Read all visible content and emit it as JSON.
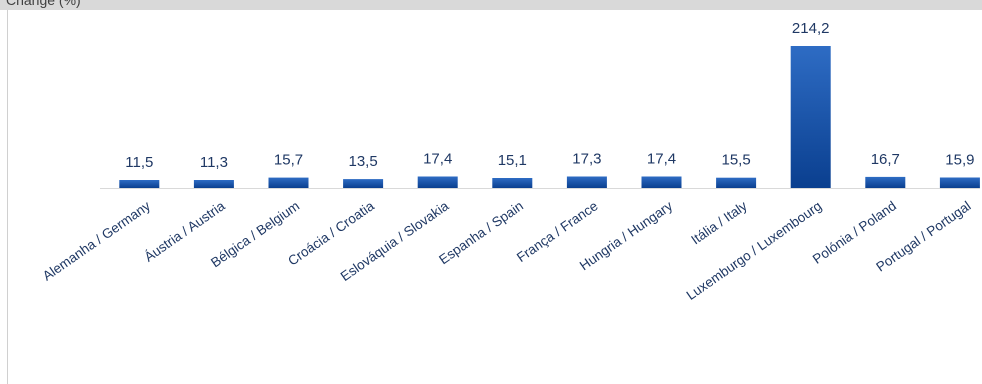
{
  "header": {
    "cropped_title": "Change (%)"
  },
  "colors": {
    "bar_top": "#2e6cc4",
    "bar_bottom": "#0a3f8f",
    "label": "#1f3864",
    "baseline": "#d9d9d9",
    "band": "#d9d9d9"
  },
  "chart_data": {
    "type": "bar",
    "title": "",
    "xlabel": "",
    "ylabel": "",
    "grid": false,
    "legend": "none",
    "categories": [
      "Alemanha / Germany",
      "Áustria / Austria",
      "Bélgica / Belgium",
      "Croácia / Croatia",
      "Eslováquia / Slovakia",
      "Espanha / Spain",
      "França / France",
      "Hungria / Hungary",
      "Itália / Italy",
      "Luxemburgo / Luxembourg",
      "Polónia / Poland",
      "Portugal / Portugal"
    ],
    "values": [
      11.5,
      11.3,
      15.7,
      13.5,
      17.4,
      15.1,
      17.3,
      17.4,
      15.5,
      214.2,
      16.7,
      15.9
    ],
    "value_labels": [
      "11,5",
      "11,3",
      "15,7",
      "13,5",
      "17,4",
      "15,1",
      "17,3",
      "17,4",
      "15,5",
      "214,2",
      "16,7",
      "15,9"
    ],
    "ylim": [
      0,
      214.2
    ]
  }
}
